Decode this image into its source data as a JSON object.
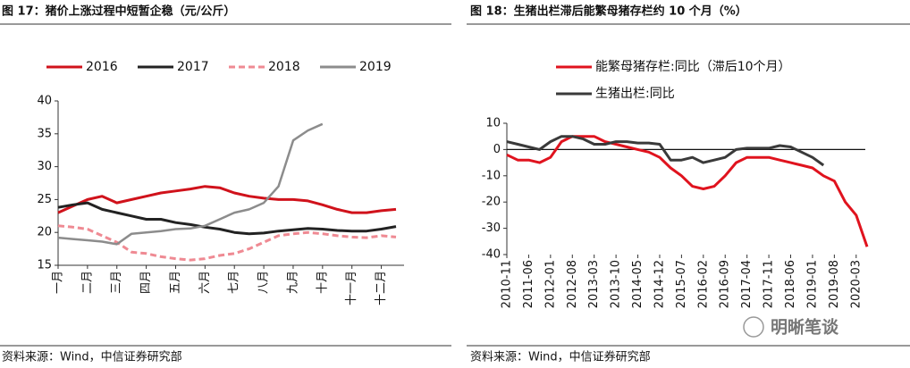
{
  "chart_data": [
    {
      "type": "line",
      "title": "图 17：猪价上涨过程中短暂企稳（元/公斤）",
      "categories": [
        "一月",
        null,
        "二月",
        null,
        "三月",
        null,
        "四月",
        null,
        "五月",
        null,
        "六月",
        null,
        "七月",
        null,
        "八月",
        null,
        "九月",
        null,
        "十月",
        null,
        "十一月",
        null,
        "十二月",
        null
      ],
      "series": [
        {
          "name": "2016",
          "color": "#d0121b",
          "dash": false,
          "values": [
            23,
            24,
            25,
            25.5,
            24.5,
            25,
            25.5,
            26,
            26.3,
            26.6,
            27,
            26.8,
            26,
            25.5,
            25.2,
            25,
            25,
            24.8,
            24.2,
            23.5,
            23,
            23,
            23.3,
            23.5
          ]
        },
        {
          "name": "2017",
          "color": "#222222",
          "dash": false,
          "values": [
            23.8,
            24.2,
            24.5,
            23.5,
            23,
            22.5,
            22,
            22,
            21.5,
            21.2,
            20.8,
            20.5,
            20,
            19.8,
            19.9,
            20.2,
            20.4,
            20.6,
            20.5,
            20.3,
            20.2,
            20.2,
            20.5,
            20.9
          ]
        },
        {
          "name": "2018",
          "color": "#ef8a93",
          "dash": true,
          "values": [
            21,
            20.8,
            20.5,
            19.5,
            18.5,
            17,
            16.8,
            16.3,
            16,
            15.8,
            16,
            16.5,
            16.8,
            17.5,
            18.5,
            19.5,
            19.8,
            20,
            19.8,
            19.5,
            19.3,
            19.2,
            19.5,
            19.3
          ]
        },
        {
          "name": "2019",
          "color": "#8c8c8c",
          "dash": false,
          "values": [
            19.2,
            19,
            18.8,
            18.6,
            18.2,
            19.8,
            20,
            20.2,
            20.5,
            20.6,
            21,
            22,
            23,
            23.5,
            24.5,
            27,
            34,
            35.5,
            36.5,
            null,
            null,
            null,
            null,
            null
          ]
        }
      ],
      "ylim": [
        15,
        40
      ],
      "yticks": [
        15,
        20,
        25,
        30,
        35,
        40
      ],
      "grid": false,
      "legend": "top",
      "source": "资料来源：Wind，中信证券研究部"
    },
    {
      "type": "line",
      "title": "图 18：生猪出栏滞后能繁母猪存栏约 10 个月（%）",
      "categories": [
        "2010-11",
        null,
        "2011-06",
        null,
        "2012-01",
        null,
        "2012-08",
        null,
        "2013-03",
        null,
        "2013-10",
        null,
        "2014-05",
        null,
        "2014-12",
        null,
        "2015-07",
        null,
        "2016-02",
        null,
        "2016-09",
        null,
        "2017-04",
        null,
        "2017-11",
        null,
        "2018-06",
        null,
        "2019-01",
        null,
        "2019-08",
        null,
        "2020-03",
        null
      ],
      "series": [
        {
          "name": "能繁母猪存栏:同比（滞后10个月）",
          "color": "#e0131e",
          "dash": false,
          "values": [
            -2,
            -4,
            -4,
            -5,
            -3,
            3,
            5,
            5,
            5,
            3,
            2,
            1,
            0,
            -1,
            -3,
            -7,
            -10,
            -14,
            -15,
            -14,
            -10,
            -5,
            -3,
            -3,
            -3,
            -4,
            -5,
            -6,
            -7,
            -10,
            -12,
            -20,
            -25,
            -37
          ]
        },
        {
          "name": "生猪出栏:同比",
          "color": "#3a3a3a",
          "dash": false,
          "values": [
            3,
            2,
            1,
            0,
            3,
            5,
            5,
            4,
            2,
            2,
            3,
            3,
            2.5,
            2.5,
            2,
            -4,
            -4,
            -3,
            -5,
            -4,
            -3,
            0,
            0.5,
            0.5,
            0.5,
            1.5,
            1,
            -1,
            -3,
            -6,
            null,
            null,
            null,
            null
          ]
        }
      ],
      "ylim": [
        -40,
        10
      ],
      "yticks": [
        -40,
        -30,
        -20,
        -10,
        0,
        10
      ],
      "grid": false,
      "legend": "upper left",
      "source": "资料来源：Wind，中信证券研究部"
    }
  ],
  "watermark": "明晰笔谈"
}
